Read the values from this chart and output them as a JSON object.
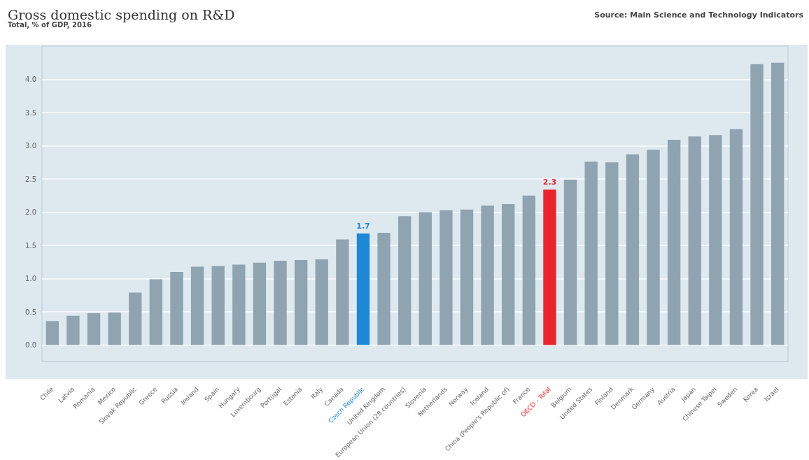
{
  "chart_data": {
    "type": "bar",
    "title": "Gross domestic spending on R&D",
    "subtitle": "Total, % of GDP, 2016",
    "annotations": [
      "Source: Main Science and Technology Indicators"
    ],
    "categories": [
      "Chile",
      "Latvia",
      "Romania",
      "Mexico",
      "Slovak Republic",
      "Greece",
      "Russia",
      "Ireland",
      "Spain",
      "Hungary",
      "Luxembourg",
      "Portugal",
      "Estonia",
      "Italy",
      "Canada",
      "Czech Republic",
      "United Kingdom",
      "European Union (28 countries)",
      "Slovenia",
      "Netherlands",
      "Norway",
      "Iceland",
      "China (People's Republic of)",
      "France",
      "OECD - Total",
      "Belgium",
      "United States",
      "Finland",
      "Denmark",
      "Germany",
      "Austria",
      "Japan",
      "Chinese Taipei",
      "Sweden",
      "Korea",
      "Israel"
    ],
    "values": [
      0.36,
      0.44,
      0.48,
      0.49,
      0.79,
      0.99,
      1.1,
      1.18,
      1.19,
      1.21,
      1.24,
      1.27,
      1.28,
      1.29,
      1.59,
      1.68,
      1.69,
      1.94,
      2.0,
      2.03,
      2.04,
      2.1,
      2.12,
      2.25,
      2.34,
      2.49,
      2.76,
      2.75,
      2.87,
      2.94,
      3.09,
      3.14,
      3.16,
      3.25,
      4.23,
      4.25
    ],
    "colors": [
      "#8fa3b0",
      "#8fa3b0",
      "#8fa3b0",
      "#8fa3b0",
      "#8fa3b0",
      "#8fa3b0",
      "#8fa3b0",
      "#8fa3b0",
      "#8fa3b0",
      "#8fa3b0",
      "#8fa3b0",
      "#8fa3b0",
      "#8fa3b0",
      "#8fa3b0",
      "#8fa3b0",
      "#1e88d6",
      "#8fa3b0",
      "#8fa3b0",
      "#8fa3b0",
      "#8fa3b0",
      "#8fa3b0",
      "#8fa3b0",
      "#8fa3b0",
      "#8fa3b0",
      "#e8242c",
      "#8fa3b0",
      "#8fa3b0",
      "#8fa3b0",
      "#8fa3b0",
      "#8fa3b0",
      "#8fa3b0",
      "#8fa3b0",
      "#8fa3b0",
      "#8fa3b0",
      "#8fa3b0",
      "#8fa3b0"
    ],
    "value_labels": [
      null,
      null,
      null,
      null,
      null,
      null,
      null,
      null,
      null,
      null,
      null,
      null,
      null,
      null,
      null,
      "1.7",
      null,
      null,
      null,
      null,
      null,
      null,
      null,
      null,
      "2.3",
      null,
      null,
      null,
      null,
      null,
      null,
      null,
      null,
      null,
      null,
      null
    ],
    "ylim": [
      -0.25,
      4.5
    ],
    "yticks": [
      {
        "value": 0,
        "label": "0.0"
      },
      0.5,
      {
        "value": 1,
        "label": "1.0"
      },
      1.5,
      {
        "value": 2,
        "label": "2.0"
      },
      2.5,
      {
        "value": 3,
        "label": "3.0"
      },
      3.5,
      {
        "value": 4,
        "label": "4.0"
      }
    ],
    "grid": "y"
  }
}
